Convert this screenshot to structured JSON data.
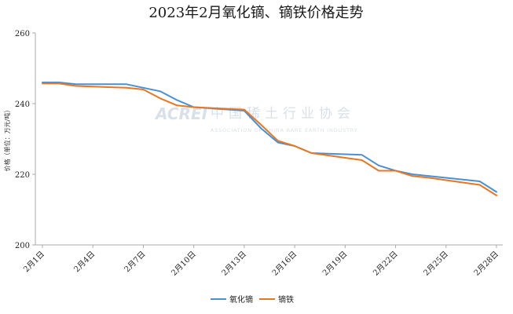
{
  "chart_data": {
    "type": "line",
    "title": "2023年2月氧化镝、镝铁价格走势",
    "ylabel": "价格（单位：万元/吨）",
    "xlabel": "",
    "ylim": [
      200,
      260
    ],
    "yticks": [
      200,
      220,
      240,
      260
    ],
    "xlim": [
      "2月1日",
      "2月28日"
    ],
    "x": [
      "2月1日",
      "2月2日",
      "2月3日",
      "2月6日",
      "2月7日",
      "2月8日",
      "2月9日",
      "2月10日",
      "2月13日",
      "2月14日",
      "2月15日",
      "2月16日",
      "2月17日",
      "2月20日",
      "2月21日",
      "2月22日",
      "2月23日",
      "2月24日",
      "2月27日",
      "2月28日"
    ],
    "xtick_labels": [
      "2月1日",
      "2月4日",
      "2月7日",
      "2月10日",
      "2月13日",
      "2月16日",
      "2月19日",
      "2月22日",
      "2月25日",
      "2月28日"
    ],
    "series": [
      {
        "name": "氧化镝",
        "color": "#4a90d0",
        "values": [
          246,
          246,
          245.5,
          245.5,
          244.5,
          243.5,
          241,
          239,
          238,
          233,
          229,
          228,
          226,
          225.5,
          222.5,
          221,
          220,
          219.5,
          218,
          215
        ]
      },
      {
        "name": "镝铁",
        "color": "#e87722",
        "values": [
          245.7,
          245.7,
          245,
          244.5,
          244,
          241.5,
          239.5,
          239,
          238.3,
          234,
          229.5,
          228,
          226,
          224,
          221,
          221,
          219.5,
          219,
          217,
          214
        ]
      }
    ],
    "grid": false,
    "legend_position": "bottom-center"
  },
  "watermark": {
    "brand": "ACREI",
    "cn_name": "中国稀土行业协会",
    "en_name": "ASSOCIATION OF CHINA RARE EARTH INDUSTRY"
  }
}
